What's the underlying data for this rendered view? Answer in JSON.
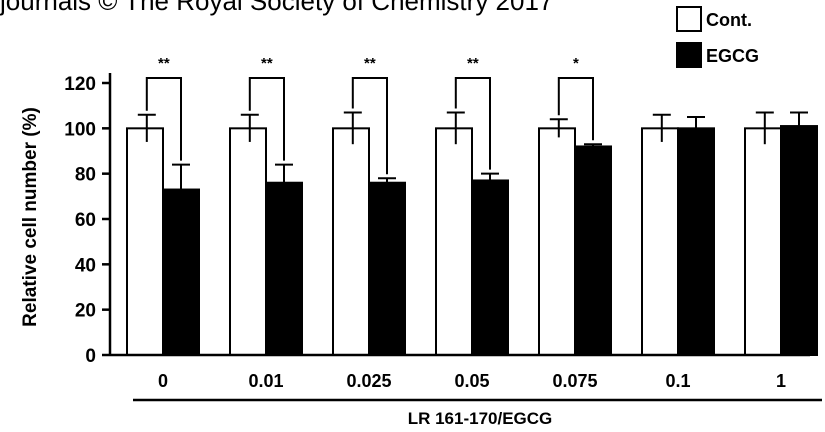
{
  "header": {
    "text": "journals © The Royal Society of Chemistry 2017"
  },
  "chart_data": {
    "type": "bar",
    "categories": [
      "0",
      "0.01",
      "0.025",
      "0.05",
      "0.075",
      "0.1",
      "1"
    ],
    "series": [
      {
        "name": "Cont.",
        "color": "#ffffff",
        "values": [
          100,
          100,
          100,
          100,
          100,
          100,
          100
        ],
        "errors": [
          6,
          6,
          7,
          7,
          4,
          6,
          7
        ]
      },
      {
        "name": "EGCG",
        "color": "#000000",
        "values": [
          73,
          76,
          76,
          77,
          92,
          100,
          101
        ],
        "errors": [
          11,
          8,
          2,
          3,
          1,
          5,
          6
        ]
      }
    ],
    "significance": [
      "**",
      "**",
      "**",
      "**",
      "*",
      "",
      ""
    ],
    "ylabel": "Relative cell number (%)",
    "xlabel": "LR 161-170/EGCG",
    "ylim": [
      0,
      120
    ],
    "yticks": [
      0,
      20,
      40,
      60,
      80,
      100,
      120
    ],
    "legend_position": "top-right",
    "grid": false
  }
}
